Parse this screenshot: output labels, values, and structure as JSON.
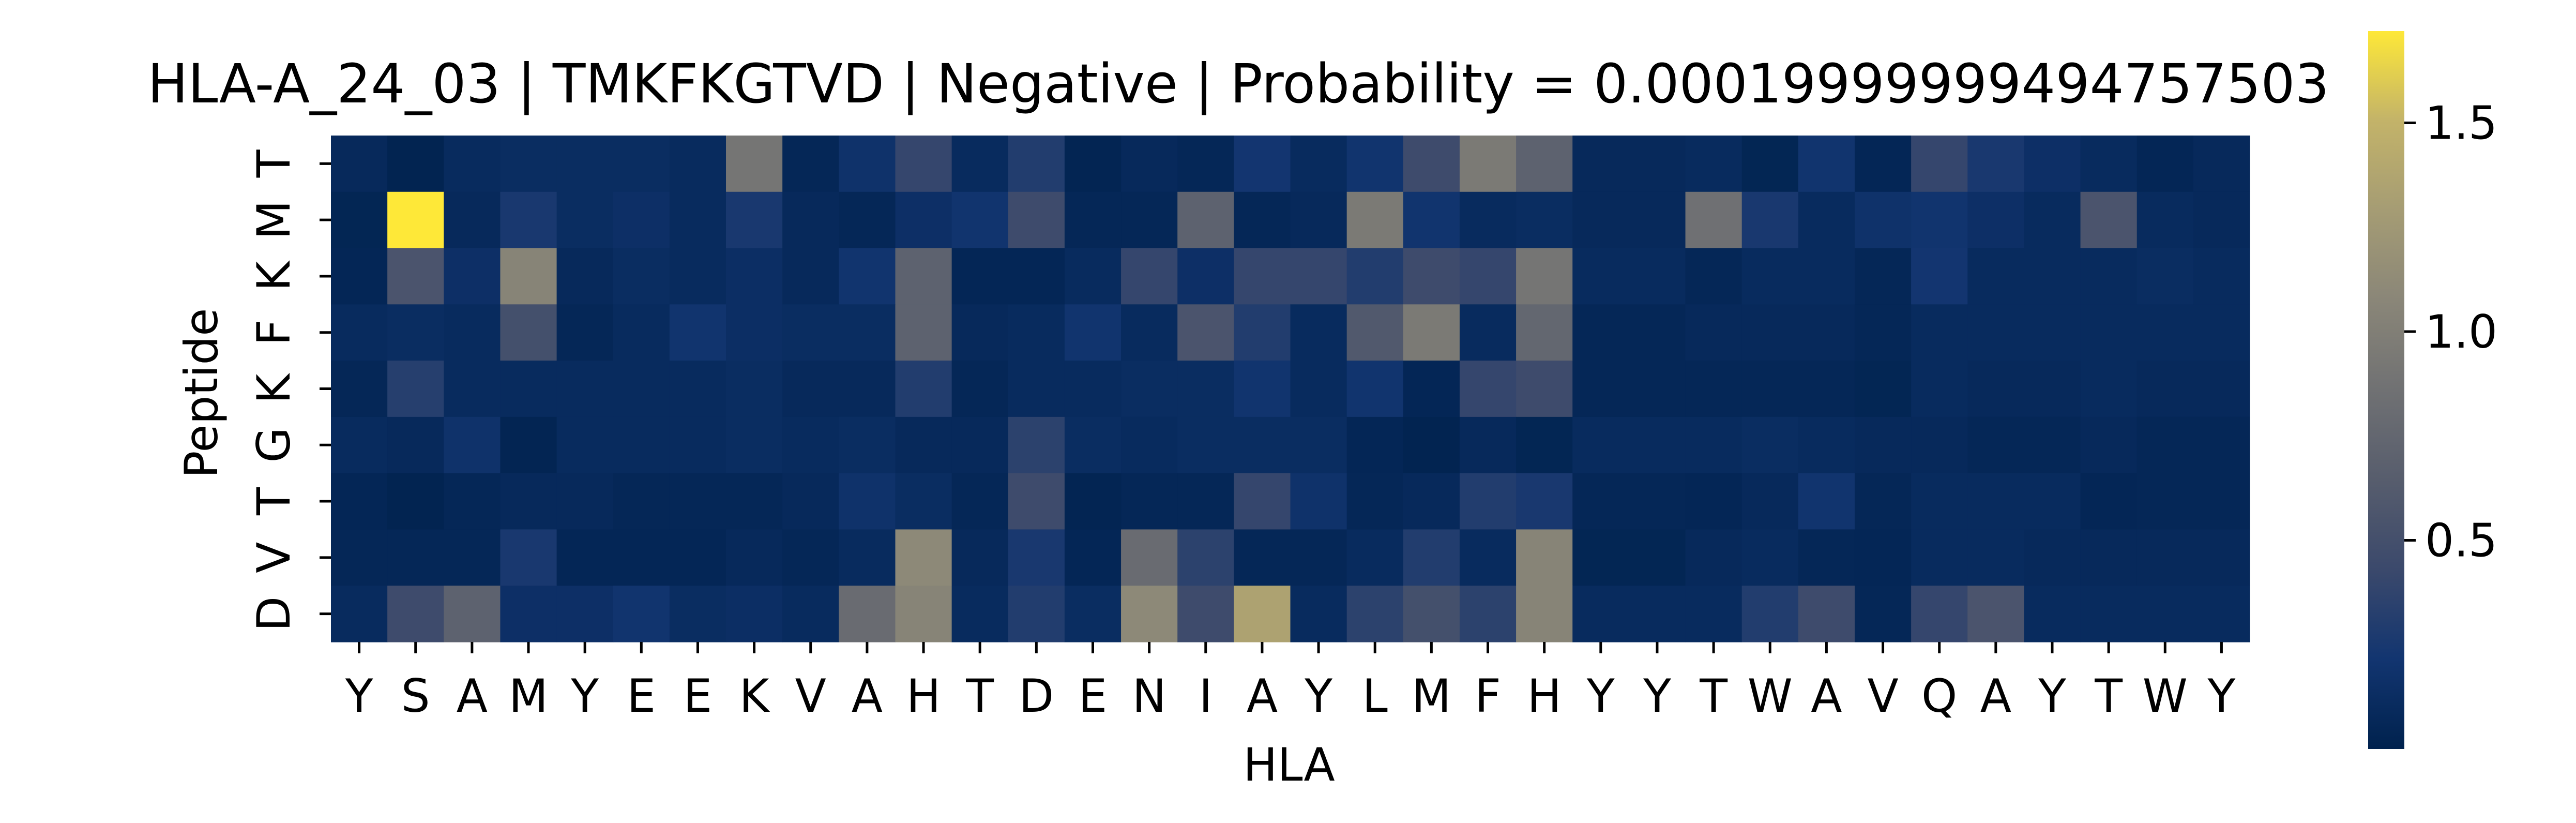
{
  "chart_data": {
    "type": "heatmap",
    "title": "HLA-A_24_03 | TMKFKGTVD | Negative | Probability = 0.00019999999494757503",
    "xlabel": "HLA",
    "ylabel": "Peptide",
    "x_tick_labels": [
      "Y",
      "S",
      "A",
      "M",
      "Y",
      "E",
      "E",
      "K",
      "V",
      "A",
      "H",
      "T",
      "D",
      "E",
      "N",
      "I",
      "A",
      "Y",
      "L",
      "M",
      "F",
      "H",
      "Y",
      "Y",
      "T",
      "W",
      "A",
      "V",
      "Q",
      "A",
      "Y",
      "T",
      "W",
      "Y"
    ],
    "y_tick_labels": [
      "T",
      "M",
      "K",
      "F",
      "K",
      "G",
      "T",
      "V",
      "D"
    ],
    "colormap": "cividis",
    "colorbar_range": [
      0.0,
      1.72
    ],
    "colorbar_ticks": [
      {
        "value": 0.5,
        "label": "0.5"
      },
      {
        "value": 1.0,
        "label": "1.0"
      },
      {
        "value": 1.5,
        "label": "1.5"
      }
    ],
    "values": [
      [
        0.08,
        0.02,
        0.1,
        0.12,
        0.12,
        0.12,
        0.1,
        0.9,
        0.06,
        0.18,
        0.4,
        0.1,
        0.3,
        0.03,
        0.08,
        0.06,
        0.22,
        0.1,
        0.2,
        0.45,
        0.95,
        0.7,
        0.08,
        0.08,
        0.1,
        0.04,
        0.2,
        0.05,
        0.4,
        0.25,
        0.15,
        0.1,
        0.05,
        0.08
      ],
      [
        0.04,
        1.72,
        0.08,
        0.25,
        0.12,
        0.15,
        0.1,
        0.25,
        0.08,
        0.06,
        0.15,
        0.2,
        0.45,
        0.06,
        0.06,
        0.7,
        0.06,
        0.08,
        0.95,
        0.2,
        0.1,
        0.12,
        0.08,
        0.08,
        0.85,
        0.25,
        0.1,
        0.18,
        0.2,
        0.15,
        0.1,
        0.55,
        0.1,
        0.08
      ],
      [
        0.05,
        0.55,
        0.15,
        1.05,
        0.08,
        0.12,
        0.1,
        0.14,
        0.08,
        0.2,
        0.7,
        0.05,
        0.05,
        0.1,
        0.4,
        0.15,
        0.4,
        0.4,
        0.3,
        0.45,
        0.4,
        0.9,
        0.1,
        0.1,
        0.06,
        0.1,
        0.1,
        0.06,
        0.22,
        0.1,
        0.1,
        0.1,
        0.12,
        0.1
      ],
      [
        0.1,
        0.12,
        0.1,
        0.5,
        0.06,
        0.1,
        0.2,
        0.14,
        0.12,
        0.12,
        0.7,
        0.08,
        0.1,
        0.2,
        0.1,
        0.55,
        0.3,
        0.1,
        0.6,
        0.95,
        0.1,
        0.75,
        0.06,
        0.06,
        0.08,
        0.08,
        0.08,
        0.06,
        0.1,
        0.1,
        0.1,
        0.1,
        0.1,
        0.1
      ],
      [
        0.06,
        0.32,
        0.1,
        0.1,
        0.1,
        0.1,
        0.1,
        0.12,
        0.08,
        0.08,
        0.3,
        0.06,
        0.1,
        0.1,
        0.12,
        0.12,
        0.2,
        0.1,
        0.2,
        0.05,
        0.4,
        0.45,
        0.06,
        0.06,
        0.06,
        0.06,
        0.06,
        0.04,
        0.1,
        0.08,
        0.08,
        0.1,
        0.08,
        0.08
      ],
      [
        0.1,
        0.08,
        0.18,
        0.03,
        0.1,
        0.1,
        0.1,
        0.12,
        0.1,
        0.12,
        0.08,
        0.08,
        0.35,
        0.12,
        0.1,
        0.12,
        0.12,
        0.12,
        0.05,
        0.02,
        0.08,
        0.04,
        0.1,
        0.1,
        0.1,
        0.12,
        0.1,
        0.08,
        0.08,
        0.06,
        0.06,
        0.08,
        0.06,
        0.06
      ],
      [
        0.05,
        0.02,
        0.06,
        0.08,
        0.08,
        0.06,
        0.06,
        0.06,
        0.08,
        0.18,
        0.12,
        0.06,
        0.45,
        0.03,
        0.06,
        0.06,
        0.4,
        0.18,
        0.06,
        0.08,
        0.3,
        0.25,
        0.06,
        0.06,
        0.05,
        0.08,
        0.2,
        0.06,
        0.1,
        0.1,
        0.1,
        0.05,
        0.06,
        0.06
      ],
      [
        0.06,
        0.06,
        0.06,
        0.25,
        0.05,
        0.05,
        0.05,
        0.08,
        0.06,
        0.1,
        1.1,
        0.08,
        0.25,
        0.05,
        0.8,
        0.35,
        0.06,
        0.06,
        0.1,
        0.3,
        0.1,
        1.05,
        0.04,
        0.04,
        0.08,
        0.1,
        0.06,
        0.05,
        0.1,
        0.1,
        0.08,
        0.08,
        0.08,
        0.08
      ],
      [
        0.1,
        0.45,
        0.7,
        0.15,
        0.15,
        0.2,
        0.12,
        0.14,
        0.1,
        0.8,
        1.05,
        0.1,
        0.3,
        0.12,
        1.1,
        0.45,
        1.35,
        0.1,
        0.35,
        0.5,
        0.35,
        1.05,
        0.1,
        0.1,
        0.1,
        0.3,
        0.45,
        0.06,
        0.4,
        0.55,
        0.1,
        0.1,
        0.1,
        0.1
      ]
    ]
  }
}
